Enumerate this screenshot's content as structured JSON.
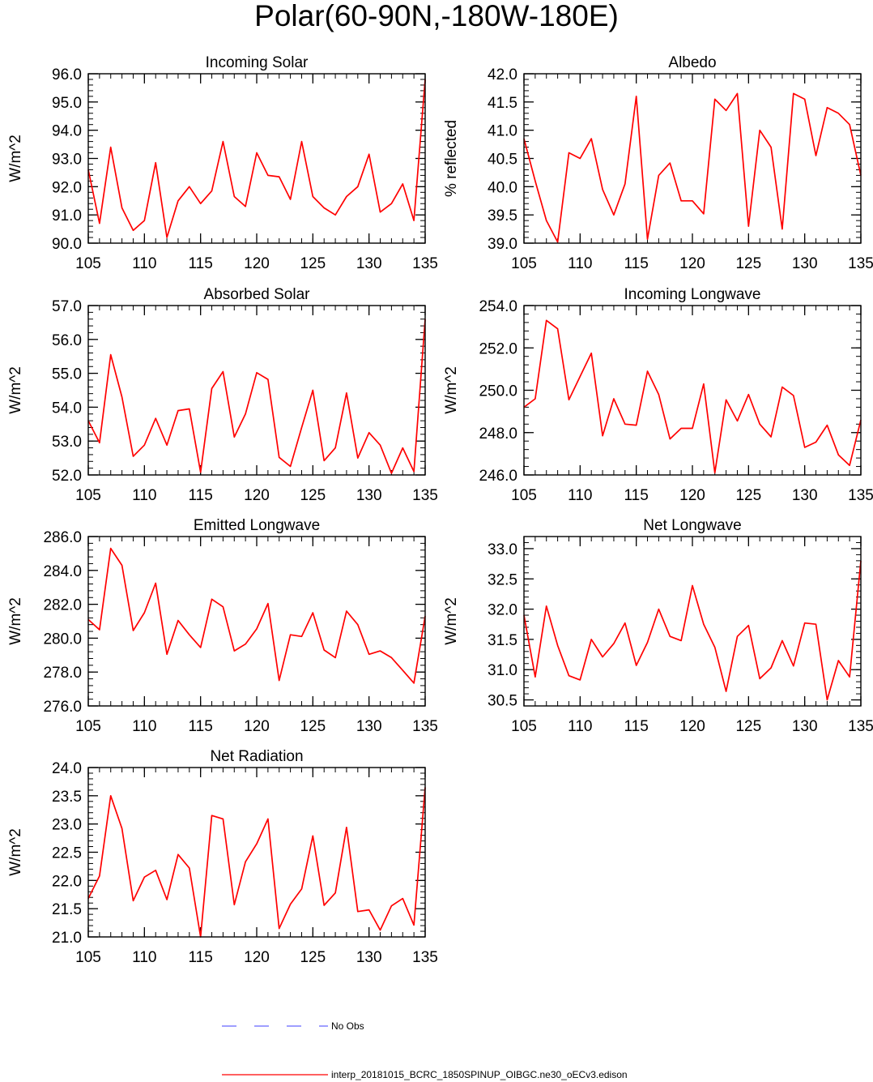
{
  "page": {
    "title": "Polar(60-90N,-180W-180E)"
  },
  "legend": {
    "items": [
      {
        "label": "No Obs",
        "color": "#6666ff",
        "style": "dashed"
      },
      {
        "label": "interp_20181015_BCRC_1850SPINUP_OIBGC.ne30_oECv3.edison",
        "color": "#ff0000",
        "style": "solid"
      }
    ]
  },
  "chart_data": [
    {
      "type": "line",
      "title": "Incoming Solar",
      "ylabel": "W/m^2",
      "xlim": [
        105,
        135
      ],
      "ylim": [
        90,
        96
      ],
      "xticks": [
        105,
        110,
        115,
        120,
        125,
        130,
        135
      ],
      "yticks": [
        "90.0",
        "91.0",
        "92.0",
        "93.0",
        "94.0",
        "95.0",
        "96.0"
      ],
      "ytick_values": [
        90,
        91,
        92,
        93,
        94,
        95,
        96
      ],
      "ysub": 0.2,
      "series": [
        {
          "color": "#ff0000",
          "x": [
            105,
            106,
            107,
            108,
            109,
            110,
            111,
            112,
            113,
            114,
            115,
            116,
            117,
            118,
            119,
            120,
            121,
            122,
            123,
            124,
            125,
            126,
            127,
            128,
            129,
            130,
            131,
            132,
            133,
            134,
            135
          ],
          "y": [
            92.6,
            90.7,
            93.4,
            91.25,
            90.45,
            90.8,
            92.85,
            90.2,
            91.5,
            92.0,
            91.4,
            91.85,
            93.6,
            91.65,
            91.3,
            93.2,
            92.4,
            92.35,
            91.55,
            93.6,
            91.65,
            91.25,
            91.0,
            91.65,
            92.0,
            93.15,
            91.1,
            91.4,
            92.1,
            90.8,
            95.8
          ]
        }
      ]
    },
    {
      "type": "line",
      "title": "Albedo",
      "ylabel": "% reflected",
      "xlim": [
        105,
        135
      ],
      "ylim": [
        39,
        42
      ],
      "xticks": [
        105,
        110,
        115,
        120,
        125,
        130,
        135
      ],
      "yticks": [
        "39.0",
        "39.5",
        "40.0",
        "40.5",
        "41.0",
        "41.5",
        "42.0"
      ],
      "ytick_values": [
        39,
        39.5,
        40,
        40.5,
        41,
        41.5,
        42
      ],
      "ysub": 0.1,
      "series": [
        {
          "color": "#ff0000",
          "x": [
            105,
            106,
            107,
            108,
            109,
            110,
            111,
            112,
            113,
            114,
            115,
            116,
            117,
            118,
            119,
            120,
            121,
            122,
            123,
            124,
            125,
            126,
            127,
            128,
            129,
            130,
            131,
            132,
            133,
            134,
            135
          ],
          "y": [
            40.85,
            40.1,
            39.4,
            39.02,
            40.6,
            40.5,
            40.85,
            39.95,
            39.5,
            40.05,
            41.6,
            39.07,
            40.2,
            40.42,
            39.75,
            39.75,
            39.52,
            41.55,
            41.35,
            41.65,
            39.3,
            41.0,
            40.7,
            39.25,
            41.65,
            41.55,
            40.55,
            41.4,
            41.3,
            41.1,
            40.2
          ]
        }
      ]
    },
    {
      "type": "line",
      "title": "Absorbed Solar",
      "ylabel": "W/m^2",
      "xlim": [
        105,
        135
      ],
      "ylim": [
        52,
        57
      ],
      "xticks": [
        105,
        110,
        115,
        120,
        125,
        130,
        135
      ],
      "yticks": [
        "52.0",
        "53.0",
        "54.0",
        "55.0",
        "56.0",
        "57.0"
      ],
      "ytick_values": [
        52,
        53,
        54,
        55,
        56,
        57
      ],
      "ysub": 0.2,
      "series": [
        {
          "color": "#ff0000",
          "x": [
            105,
            106,
            107,
            108,
            109,
            110,
            111,
            112,
            113,
            114,
            115,
            116,
            117,
            118,
            119,
            120,
            121,
            122,
            123,
            124,
            125,
            126,
            127,
            128,
            129,
            130,
            131,
            132,
            133,
            134,
            135
          ],
          "y": [
            53.6,
            52.95,
            55.55,
            54.3,
            52.55,
            52.88,
            53.67,
            52.88,
            53.9,
            53.95,
            52.08,
            54.55,
            55.05,
            53.12,
            53.8,
            55.02,
            54.82,
            52.52,
            52.25,
            53.4,
            54.5,
            52.42,
            52.8,
            54.42,
            52.5,
            53.25,
            52.88,
            52.05,
            52.8,
            52.1,
            56.6
          ]
        }
      ]
    },
    {
      "type": "line",
      "title": "Incoming Longwave",
      "ylabel": "W/m^2",
      "xlim": [
        105,
        135
      ],
      "ylim": [
        246,
        254
      ],
      "xticks": [
        105,
        110,
        115,
        120,
        125,
        130,
        135
      ],
      "yticks": [
        "246.0",
        "248.0",
        "250.0",
        "252.0",
        "254.0"
      ],
      "ytick_values": [
        246,
        248,
        250,
        252,
        254
      ],
      "ysub": 0.4,
      "series": [
        {
          "color": "#ff0000",
          "x": [
            105,
            106,
            107,
            108,
            109,
            110,
            111,
            112,
            113,
            114,
            115,
            116,
            117,
            118,
            119,
            120,
            121,
            122,
            123,
            124,
            125,
            126,
            127,
            128,
            129,
            130,
            131,
            132,
            133,
            134,
            135
          ],
          "y": [
            249.2,
            249.6,
            253.3,
            252.9,
            249.55,
            250.65,
            251.75,
            247.85,
            249.6,
            248.4,
            248.35,
            250.9,
            249.8,
            247.7,
            248.2,
            248.2,
            250.3,
            246.1,
            249.55,
            248.55,
            249.8,
            248.4,
            247.8,
            250.15,
            249.75,
            247.3,
            247.55,
            248.35,
            246.95,
            246.45,
            248.6
          ]
        }
      ]
    },
    {
      "type": "line",
      "title": "Emitted Longwave",
      "ylabel": "W/m^2",
      "xlim": [
        105,
        135
      ],
      "ylim": [
        276,
        286
      ],
      "xticks": [
        105,
        110,
        115,
        120,
        125,
        130,
        135
      ],
      "yticks": [
        "276.0",
        "278.0",
        "280.0",
        "282.0",
        "284.0",
        "286.0"
      ],
      "ytick_values": [
        276,
        278,
        280,
        282,
        284,
        286
      ],
      "ysub": 0.4,
      "series": [
        {
          "color": "#ff0000",
          "x": [
            105,
            106,
            107,
            108,
            109,
            110,
            111,
            112,
            113,
            114,
            115,
            116,
            117,
            118,
            119,
            120,
            121,
            122,
            123,
            124,
            125,
            126,
            127,
            128,
            129,
            130,
            131,
            132,
            133,
            134,
            135
          ],
          "y": [
            281.1,
            280.5,
            285.3,
            284.3,
            280.45,
            281.5,
            283.25,
            279.05,
            281.05,
            280.2,
            279.45,
            282.3,
            281.85,
            279.25,
            279.65,
            280.55,
            282.05,
            277.5,
            280.2,
            280.1,
            281.5,
            279.3,
            278.85,
            281.6,
            280.8,
            279.05,
            279.25,
            278.85,
            278.1,
            277.35,
            281.3
          ]
        }
      ]
    },
    {
      "type": "line",
      "title": "Net Longwave",
      "ylabel": "W/m^2",
      "xlim": [
        105,
        135
      ],
      "ylim": [
        30.4,
        33.2
      ],
      "xticks": [
        105,
        110,
        115,
        120,
        125,
        130,
        135
      ],
      "yticks": [
        "30.5",
        "31.0",
        "31.5",
        "32.0",
        "32.5",
        "33.0"
      ],
      "ytick_values": [
        30.5,
        31,
        31.5,
        32,
        32.5,
        33
      ],
      "ysub": 0.1,
      "series": [
        {
          "color": "#ff0000",
          "x": [
            105,
            106,
            107,
            108,
            109,
            110,
            111,
            112,
            113,
            114,
            115,
            116,
            117,
            118,
            119,
            120,
            121,
            122,
            123,
            124,
            125,
            126,
            127,
            128,
            129,
            130,
            131,
            132,
            133,
            134,
            135
          ],
          "y": [
            31.9,
            30.88,
            32.05,
            31.4,
            30.9,
            30.83,
            31.5,
            31.21,
            31.43,
            31.77,
            31.07,
            31.45,
            32.0,
            31.55,
            31.48,
            32.39,
            31.75,
            31.37,
            30.64,
            31.55,
            31.73,
            30.85,
            31.03,
            31.48,
            31.06,
            31.77,
            31.75,
            30.5,
            31.15,
            30.88,
            32.8
          ]
        }
      ]
    },
    {
      "type": "line",
      "title": "Net Radiation",
      "ylabel": "W/m^2",
      "xlim": [
        105,
        135
      ],
      "ylim": [
        21,
        24
      ],
      "xticks": [
        105,
        110,
        115,
        120,
        125,
        130,
        135
      ],
      "yticks": [
        "21.0",
        "21.5",
        "22.0",
        "22.5",
        "23.0",
        "23.5",
        "24.0"
      ],
      "ytick_values": [
        21,
        21.5,
        22,
        22.5,
        23,
        23.5,
        24
      ],
      "ysub": 0.1,
      "series": [
        {
          "color": "#ff0000",
          "x": [
            105,
            106,
            107,
            108,
            109,
            110,
            111,
            112,
            113,
            114,
            115,
            116,
            117,
            118,
            119,
            120,
            121,
            122,
            123,
            124,
            125,
            126,
            127,
            128,
            129,
            130,
            131,
            132,
            133,
            134,
            135
          ],
          "y": [
            21.68,
            22.08,
            23.5,
            22.92,
            21.64,
            22.06,
            22.18,
            21.66,
            22.46,
            22.22,
            21.0,
            23.15,
            23.09,
            21.57,
            22.33,
            22.65,
            23.09,
            21.15,
            21.58,
            21.85,
            22.79,
            21.56,
            21.78,
            22.94,
            21.45,
            21.48,
            21.12,
            21.55,
            21.68,
            21.21,
            23.65
          ]
        }
      ]
    }
  ]
}
